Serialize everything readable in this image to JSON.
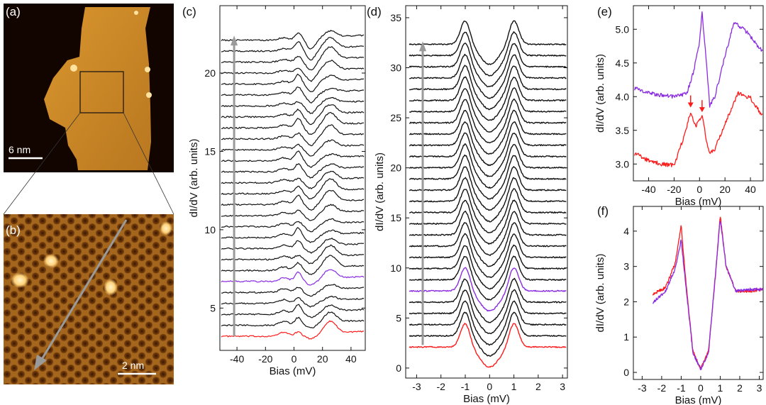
{
  "panel_labels": {
    "a": "(a)",
    "b": "(b)",
    "c": "(c)",
    "d": "(d)",
    "e": "(e)",
    "f": "(f)"
  },
  "scale_bars": {
    "a": "6 nm",
    "b": "2 nm"
  },
  "colors": {
    "black": "#111111",
    "purple": "#8a2be2",
    "red": "#ff1a1a",
    "gray_arrow": "#9a9a9a",
    "stm_dark": "#2b0f00",
    "stm_mid": "#a4661c",
    "stm_bright": "#ffd27a"
  },
  "chart_data": [
    {
      "id": "c",
      "type": "line",
      "title": "",
      "xlabel": "Bias (mV)",
      "ylabel": "dI/dV (arb. units)",
      "xlim": [
        -52,
        50
      ],
      "ylim": [
        2.3,
        24.3
      ],
      "xticks": [
        -40,
        -20,
        0,
        20,
        40
      ],
      "xtick_labels": [
        "-40",
        "-20",
        "0",
        "20",
        "40"
      ],
      "yticks": [
        5,
        10,
        15,
        20
      ],
      "ytick_labels": [
        "5",
        "10",
        "15",
        "20"
      ],
      "series_count": 28,
      "offset_start": 3.2,
      "offset_step": 0.7,
      "highlight": {
        "red_index": 0,
        "purple_index": 5
      },
      "arrow": {
        "x": -42,
        "from": 3.2,
        "to": 22.3
      }
    },
    {
      "id": "d",
      "type": "line",
      "title": "",
      "xlabel": "Bias (mV)",
      "ylabel": "dI/dV (arb. units)",
      "xlim": [
        -3.45,
        3.2
      ],
      "ylim": [
        -1,
        36.2
      ],
      "xticks": [
        -3,
        -2,
        -1,
        0,
        1,
        2,
        3
      ],
      "xtick_labels": [
        "-3",
        "-2",
        "-1",
        "0",
        "1",
        "2",
        "3"
      ],
      "yticks": [
        0,
        5,
        10,
        15,
        20,
        25,
        30,
        35
      ],
      "ytick_labels": [
        "0",
        "5",
        "10",
        "15",
        "20",
        "25",
        "30",
        "35"
      ],
      "series_count": 28,
      "offset_start": 2.1,
      "offset_step": 1.12,
      "peak_positions": [
        -1,
        1
      ],
      "highlight": {
        "red_index": 0,
        "purple_index": 5
      },
      "arrow": {
        "x": -2.75,
        "from": 2.3,
        "to": 32.5
      }
    },
    {
      "id": "e",
      "type": "line",
      "title": "",
      "xlabel": "Bias (mV)",
      "ylabel": "dI/dV (arb. units)",
      "xlim": [
        -52,
        50
      ],
      "ylim": [
        2.75,
        5.35
      ],
      "xticks": [
        -40,
        -20,
        0,
        20,
        40
      ],
      "xtick_labels": [
        "-40",
        "-20",
        "0",
        "20",
        "40"
      ],
      "yticks": [
        3.0,
        3.5,
        4.0,
        4.5,
        5.0
      ],
      "ytick_labels": [
        "3.0",
        "3.5",
        "4.0",
        "4.5",
        "5.0"
      ],
      "series": [
        {
          "name": "purple",
          "color": "#8a2be2",
          "points": [
            [
              -50,
              4.12
            ],
            [
              -40,
              4.05
            ],
            [
              -30,
              4.02
            ],
            [
              -20,
              4.0
            ],
            [
              -10,
              4.05
            ],
            [
              -5,
              4.35
            ],
            [
              0,
              4.8
            ],
            [
              2,
              5.25
            ],
            [
              5,
              4.6
            ],
            [
              8,
              3.85
            ],
            [
              12,
              4.0
            ],
            [
              20,
              4.6
            ],
            [
              27,
              5.1
            ],
            [
              35,
              5.0
            ],
            [
              42,
              4.85
            ],
            [
              50,
              4.65
            ]
          ]
        },
        {
          "name": "red",
          "color": "#ff1a1a",
          "points": [
            [
              -50,
              3.15
            ],
            [
              -40,
              3.05
            ],
            [
              -30,
              3.0
            ],
            [
              -20,
              2.98
            ],
            [
              -15,
              3.25
            ],
            [
              -10,
              3.55
            ],
            [
              -7,
              3.78
            ],
            [
              -3,
              3.55
            ],
            [
              2,
              3.72
            ],
            [
              5,
              3.4
            ],
            [
              8,
              3.15
            ],
            [
              12,
              3.22
            ],
            [
              20,
              3.6
            ],
            [
              30,
              4.05
            ],
            [
              40,
              3.98
            ],
            [
              50,
              3.7
            ]
          ]
        }
      ],
      "annotations": [
        {
          "type": "arrow",
          "x": -7,
          "y": 3.85
        },
        {
          "type": "arrow",
          "x": 2,
          "y": 3.78
        }
      ]
    },
    {
      "id": "f",
      "type": "line",
      "title": "",
      "xlabel": "Bias (mV)",
      "ylabel": "dI/dV (arb. units)",
      "xlim": [
        -3.45,
        3.2
      ],
      "ylim": [
        -0.2,
        4.7
      ],
      "xticks": [
        -3,
        -2,
        -1,
        0,
        1,
        2,
        3
      ],
      "xtick_labels": [
        "-3",
        "-2",
        "-1",
        "0",
        "1",
        "2",
        "3"
      ],
      "yticks": [
        0,
        1,
        2,
        3,
        4
      ],
      "ytick_labels": [
        "0",
        "1",
        "2",
        "3",
        "4"
      ],
      "series": [
        {
          "name": "red",
          "color": "#ff1a1a",
          "points": [
            [
              -3.4,
              2.15
            ],
            [
              -2.5,
              2.2
            ],
            [
              -1.8,
              2.4
            ],
            [
              -1.3,
              3.1
            ],
            [
              -1.0,
              4.15
            ],
            [
              -0.75,
              2.5
            ],
            [
              -0.4,
              0.6
            ],
            [
              0,
              0.1
            ],
            [
              0.4,
              0.6
            ],
            [
              0.75,
              2.7
            ],
            [
              1.0,
              4.45
            ],
            [
              1.3,
              3.0
            ],
            [
              1.8,
              2.3
            ],
            [
              2.5,
              2.3
            ],
            [
              3.2,
              2.35
            ]
          ]
        },
        {
          "name": "purple",
          "color": "#8a2be2",
          "points": [
            [
              -3.4,
              1.75
            ],
            [
              -2.5,
              1.95
            ],
            [
              -1.8,
              2.3
            ],
            [
              -1.3,
              2.95
            ],
            [
              -1.0,
              3.75
            ],
            [
              -0.75,
              2.4
            ],
            [
              -0.4,
              0.55
            ],
            [
              0,
              0.08
            ],
            [
              0.4,
              0.55
            ],
            [
              0.75,
              2.75
            ],
            [
              1.0,
              4.35
            ],
            [
              1.3,
              3.0
            ],
            [
              1.8,
              2.3
            ],
            [
              2.5,
              2.35
            ],
            [
              3.2,
              2.35
            ]
          ]
        }
      ]
    }
  ]
}
